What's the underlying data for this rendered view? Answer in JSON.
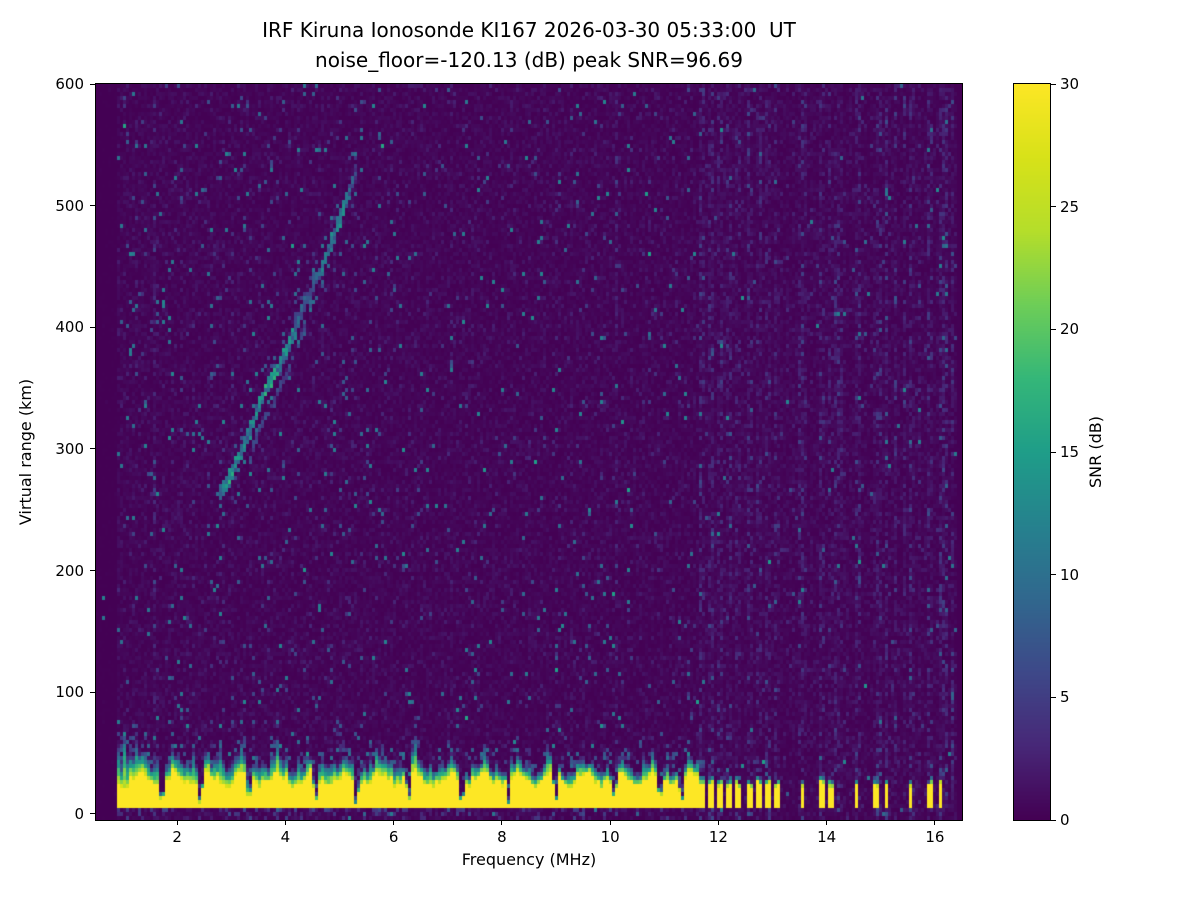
{
  "chart_data": {
    "type": "heatmap",
    "title": "IRF Kiruna Ionosonde KI167 2026-03-30 05:33:00  UT",
    "subtitle": "noise_floor=-120.13 (dB) peak SNR=96.69",
    "xlabel": "Frequency (MHz)",
    "ylabel": "Virtual range (km)",
    "xlim": [
      0.5,
      16.5
    ],
    "ylim": [
      -5,
      600
    ],
    "xticks": [
      2,
      4,
      6,
      8,
      10,
      12,
      14,
      16
    ],
    "yticks": [
      0,
      100,
      200,
      300,
      400,
      500,
      600
    ],
    "grid": false,
    "legend": null,
    "station": "IRF Kiruna Ionosonde KI167",
    "timestamp_ut": "2026-03-30 05:33:00",
    "stats": {
      "noise_floor_db": -120.13,
      "peak_snr_db": 96.69
    },
    "colorbar": {
      "label": "SNR (dB)",
      "min": 0,
      "max": 30,
      "ticks": [
        0,
        5,
        10,
        15,
        20,
        25,
        30
      ],
      "position": "right"
    },
    "colormap": {
      "name": "viridis",
      "stops": [
        "#440154",
        "#482878",
        "#3e4989",
        "#31688e",
        "#26828e",
        "#1f9e89",
        "#35b779",
        "#6ece58",
        "#b5de2b",
        "#d8e219",
        "#fde725"
      ]
    },
    "features": {
      "background_snr_db": [
        0,
        3
      ],
      "ground_echo": {
        "freq_range_mhz": [
          0.88,
          11.62
        ],
        "solid_range_km": [
          4,
          30
        ],
        "snr_db": 30,
        "fringe_top_km": 50,
        "notch_freqs_mhz": [
          1.72,
          2.42,
          3.32,
          4.56,
          5.3,
          6.28,
          7.25,
          8.12,
          9.0,
          10.08,
          10.92,
          11.32
        ]
      },
      "ground_echo_bars_mhz": [
        [
          11.66,
          11.76
        ],
        [
          11.83,
          11.93
        ],
        [
          12.0,
          12.1
        ],
        [
          12.16,
          12.26
        ],
        [
          12.33,
          12.44
        ],
        [
          12.52,
          12.62
        ],
        [
          12.7,
          12.8
        ],
        [
          12.88,
          12.98
        ],
        [
          13.05,
          13.13
        ],
        [
          13.5,
          13.58
        ],
        [
          13.88,
          13.97
        ],
        [
          14.05,
          14.12
        ],
        [
          14.5,
          14.58
        ],
        [
          14.88,
          14.97
        ],
        [
          15.05,
          15.12
        ],
        [
          15.5,
          15.58
        ],
        [
          15.88,
          15.97
        ],
        [
          16.05,
          16.12
        ]
      ],
      "echo_trace": {
        "description": "ionospheric F-layer echo trace, teal, SNR ~10-18 dB",
        "points_mhz_km_brightness": [
          [
            2.78,
            264,
            0.55
          ],
          [
            2.88,
            270,
            0.95
          ],
          [
            2.98,
            277,
            1.0
          ],
          [
            3.08,
            286,
            0.85
          ],
          [
            3.18,
            296,
            0.9
          ],
          [
            3.3,
            310,
            0.75
          ],
          [
            3.42,
            324,
            0.85
          ],
          [
            3.55,
            340,
            0.95
          ],
          [
            3.68,
            352,
            1.0
          ],
          [
            3.8,
            362,
            1.0
          ],
          [
            3.92,
            372,
            0.9
          ],
          [
            4.05,
            383,
            0.95
          ],
          [
            4.18,
            398,
            0.75
          ],
          [
            4.3,
            414,
            0.55
          ],
          [
            4.45,
            428,
            0.45
          ],
          [
            4.58,
            440,
            0.6
          ],
          [
            4.7,
            452,
            0.7
          ],
          [
            4.82,
            466,
            0.8
          ],
          [
            4.94,
            480,
            0.85
          ],
          [
            5.05,
            494,
            0.8
          ],
          [
            5.15,
            507,
            0.7
          ],
          [
            5.24,
            519,
            0.55
          ],
          [
            5.3,
            528,
            0.35
          ]
        ]
      },
      "noisy_columns_mhz": [
        {
          "f": 1.58,
          "s": 2.4
        },
        {
          "f": 2.18,
          "s": 1.5
        },
        {
          "f": 3.02,
          "s": 1.4
        },
        {
          "f": 4.72,
          "s": 1.5
        },
        {
          "f": 5.9,
          "s": 1.4
        },
        {
          "f": 6.32,
          "s": 1.8
        },
        {
          "f": 7.06,
          "s": 1.6
        },
        {
          "f": 7.6,
          "s": 1.3
        },
        {
          "f": 8.52,
          "s": 1.5
        },
        {
          "f": 9.28,
          "s": 1.4
        },
        {
          "f": 10.12,
          "s": 2.2
        },
        {
          "f": 10.42,
          "s": 1.6
        },
        {
          "f": 11.2,
          "s": 1.7
        }
      ],
      "interference_band_mhz": [
        11.62,
        16.35
      ]
    }
  }
}
